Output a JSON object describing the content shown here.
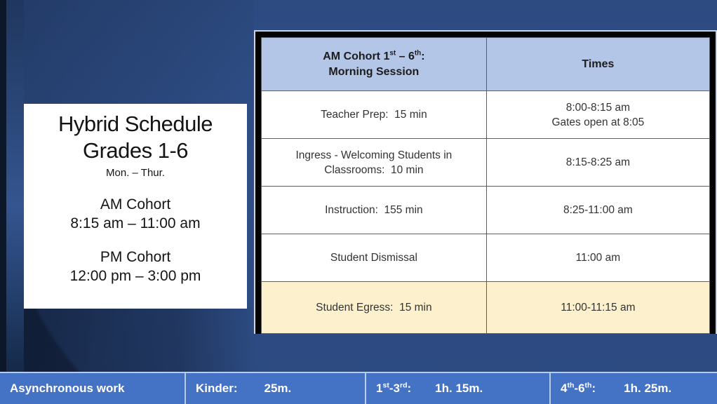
{
  "colors": {
    "background_blue": "#2e4d86",
    "background_dark_corner": "#14263f",
    "left_edge_strip": "#0c1729",
    "card_background": "#ffffff",
    "table_header_fill": "#b4c6e7",
    "egress_row_fill": "#fdf1cd",
    "table_frame": "#040404",
    "bottom_bar_fill": "#4472c4",
    "bottom_bar_border": "#b8cbe9",
    "bottom_bar_text": "#ffffff"
  },
  "info_card": {
    "title_line1": "Hybrid Schedule",
    "title_line2": "Grades 1-6",
    "days": "Mon. – Thur.",
    "am_label": "AM Cohort",
    "am_time": "8:15 am – 11:00 am",
    "pm_label": "PM Cohort",
    "pm_time": "12:00 pm – 3:00 pm"
  },
  "schedule_table": {
    "header": {
      "col1": {
        "p1": "AM Cohort 1",
        "s1": "st",
        "p2": " – 6",
        "s2": "th",
        "p3": ":",
        "line2": "Morning Session"
      },
      "col2": "Times"
    },
    "rows": [
      {
        "activity": "Teacher Prep:  15 min",
        "time": "8:00-8:15 am",
        "time_note": "Gates open at 8:05"
      },
      {
        "activity": "Ingress - Welcoming Students in Classrooms:  10 min",
        "time": "8:15-8:25 am"
      },
      {
        "activity": "Instruction:  155 min",
        "time": "8:25-11:00 am"
      },
      {
        "activity": "Student Dismissal",
        "time": "11:00 am"
      },
      {
        "activity": "Student Egress:  15 min",
        "time": "11:00-11:15 am"
      }
    ]
  },
  "bottom_bar": {
    "async_label": "Asynchronous work",
    "kinder": {
      "label": "Kinder:",
      "value": "25m."
    },
    "grades_1_3": {
      "p1": "1",
      "s1": "st",
      "p2": "-3",
      "s2": "rd",
      "p3": ":",
      "value": "1h. 15m."
    },
    "grades_4_6": {
      "p1": "4",
      "s1": "th",
      "p2": "-6",
      "s2": "th",
      "p3": ":",
      "value": "1h. 25m."
    }
  }
}
